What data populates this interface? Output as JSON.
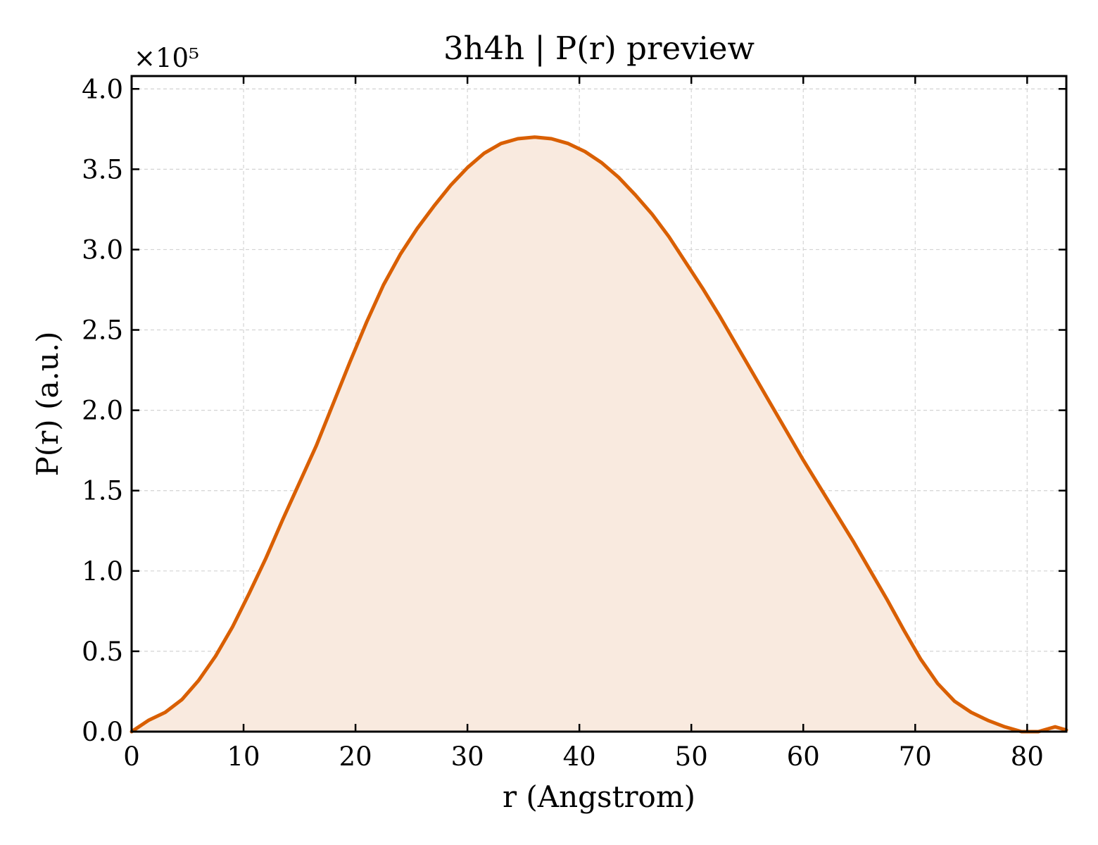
{
  "chart_data": {
    "type": "area",
    "title": "3h4h | P(r) preview",
    "xlabel": "r (Angstrom)",
    "ylabel": "P(r) (a.u.)",
    "y_multiplier_label": "×10⁵",
    "y_scale": 100000,
    "xlim": [
      0,
      83.5
    ],
    "ylim": [
      0,
      4.08
    ],
    "x_ticks": [
      0,
      10,
      20,
      30,
      40,
      50,
      60,
      70,
      80
    ],
    "x_tick_labels": [
      "0",
      "10",
      "20",
      "30",
      "40",
      "50",
      "60",
      "70",
      "80"
    ],
    "y_ticks": [
      0,
      0.5,
      1.0,
      1.5,
      2.0,
      2.5,
      3.0,
      3.5,
      4.0
    ],
    "y_tick_labels": [
      "0.0",
      "0.5",
      "1.0",
      "1.5",
      "2.0",
      "2.5",
      "3.0",
      "3.5",
      "4.0"
    ],
    "grid": true,
    "colors": {
      "line": "#d95f02",
      "fill": "#f9eadf"
    },
    "series": [
      {
        "x": [
          0,
          1.5,
          3,
          4.5,
          6,
          7.5,
          9,
          10.5,
          12,
          13.5,
          15,
          16.5,
          18,
          19.5,
          21,
          22.5,
          24,
          25.5,
          27,
          28.5,
          30,
          31.5,
          33,
          34.5,
          36,
          37.5,
          39,
          40.5,
          42,
          43.5,
          45,
          46.5,
          48,
          49.5,
          51,
          52.5,
          54,
          55.5,
          57,
          58.5,
          60,
          61.5,
          63,
          64.5,
          66,
          67.5,
          69,
          70.5,
          72,
          73.5,
          75,
          76.5,
          78,
          79.5,
          81,
          82.5,
          83.5
        ],
        "y": [
          0.0,
          0.07,
          0.12,
          0.2,
          0.32,
          0.47,
          0.65,
          0.86,
          1.08,
          1.32,
          1.55,
          1.78,
          2.04,
          2.3,
          2.55,
          2.78,
          2.97,
          3.13,
          3.27,
          3.4,
          3.51,
          3.6,
          3.66,
          3.69,
          3.7,
          3.69,
          3.66,
          3.61,
          3.54,
          3.45,
          3.34,
          3.22,
          3.08,
          2.92,
          2.76,
          2.59,
          2.41,
          2.23,
          2.05,
          1.87,
          1.69,
          1.52,
          1.35,
          1.18,
          1.0,
          0.82,
          0.63,
          0.45,
          0.3,
          0.19,
          0.12,
          0.07,
          0.03,
          0.0,
          0.0,
          0.03,
          0.01
        ]
      }
    ]
  }
}
